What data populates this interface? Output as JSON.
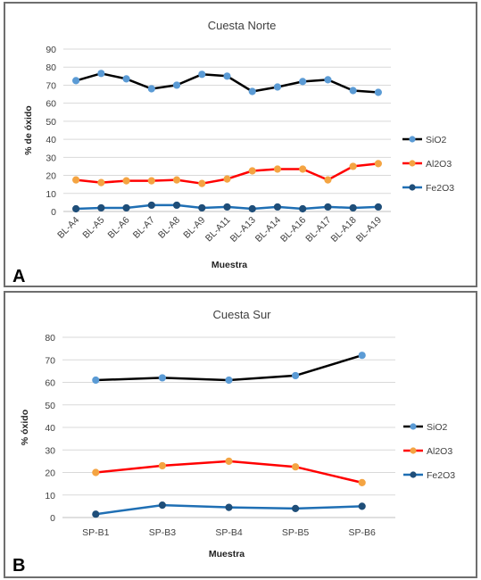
{
  "chart_data": [
    {
      "type": "line",
      "panel_label": "A",
      "title": "Cuesta Norte",
      "xlabel": "Muestra",
      "ylabel": "% de óxido",
      "ylim": [
        0,
        90
      ],
      "yticks": [
        0,
        10,
        20,
        30,
        40,
        50,
        60,
        70,
        80,
        90
      ],
      "categories": [
        "BL-A4",
        "BL-A5",
        "BL-A6",
        "BL-A7",
        "BL-A8",
        "BL-A9",
        "BL-A11",
        "BL-A13",
        "BL-A14",
        "BL-A16",
        "BL-A17",
        "BL-A18",
        "BL-A19"
      ],
      "series": [
        {
          "name": "SiO2",
          "color": "#000000",
          "marker_color": "#5b9bd5",
          "values": [
            72.5,
            76.5,
            73.5,
            68,
            70,
            76,
            75,
            66.5,
            69,
            72,
            73,
            67,
            66
          ]
        },
        {
          "name": "Al2O3",
          "color": "#ff0000",
          "marker_color": "#f4a442",
          "values": [
            17.5,
            16,
            17,
            17,
            17.5,
            15.5,
            18,
            22.5,
            23.5,
            23.5,
            17.5,
            25,
            26.5
          ]
        },
        {
          "name": "Fe2O3",
          "color": "#1f6fb4",
          "marker_color": "#1f4e79",
          "values": [
            1.5,
            2,
            2,
            3.5,
            3.5,
            2,
            2.5,
            1.5,
            2.5,
            1.5,
            2.5,
            2,
            2.5
          ]
        }
      ],
      "grid": true,
      "legend": "right"
    },
    {
      "type": "line",
      "panel_label": "B",
      "title": "Cuesta Sur",
      "xlabel": "Muestra",
      "ylabel": "% óxido",
      "ylim": [
        0,
        80
      ],
      "yticks": [
        0,
        10,
        20,
        30,
        40,
        50,
        60,
        70,
        80
      ],
      "categories": [
        "SP-B1",
        "SP-B3",
        "SP-B4",
        "SP-B5",
        "SP-B6"
      ],
      "series": [
        {
          "name": "SiO2",
          "color": "#000000",
          "marker_color": "#5b9bd5",
          "values": [
            61,
            62,
            61,
            63,
            72
          ]
        },
        {
          "name": "Al2O3",
          "color": "#ff0000",
          "marker_color": "#f4a442",
          "values": [
            20,
            23,
            25,
            22.5,
            15.5
          ]
        },
        {
          "name": "Fe2O3",
          "color": "#1f6fb4",
          "marker_color": "#1f4e79",
          "values": [
            1.5,
            5.5,
            4.5,
            4,
            5
          ]
        }
      ],
      "grid": true,
      "legend": "right"
    }
  ]
}
